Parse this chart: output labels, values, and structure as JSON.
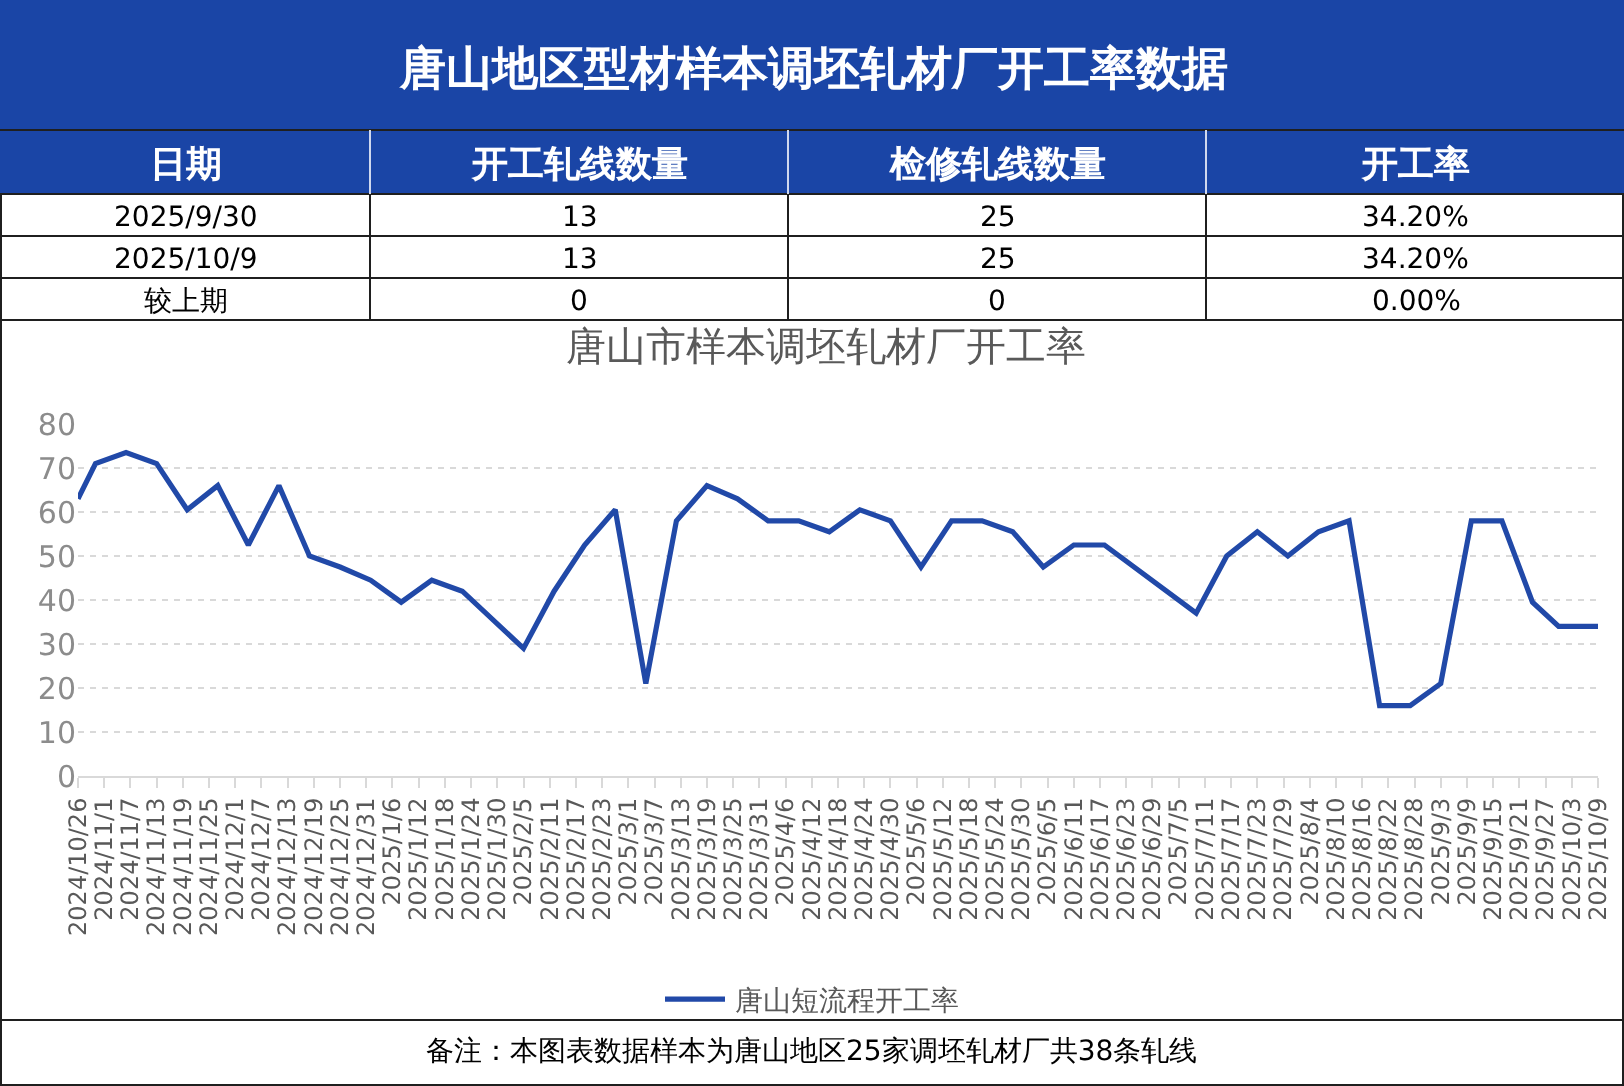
{
  "chart_data": [
    {
      "type": "other",
      "title": "唐山地区型材样本调坯轧材厂开工率数据",
      "ylabel": "日期",
      "color": "#1a45a6",
      "categories": [
        "开工轧线数量",
        "检修轧线数量",
        "开工率"
      ],
      "y_categories": [
        "2025/9/30",
        "2025/10/9",
        "较上期"
      ],
      "cell_labels": [
        [
          "13",
          "25",
          "34.20%"
        ],
        [
          "13",
          "25",
          "34.20%"
        ],
        [
          "0",
          "0",
          "0.00%"
        ]
      ]
    },
    {
      "type": "line",
      "title": "唐山市样本调坯轧材厂开工率",
      "x": [
        "2024-10-26",
        "2024-10-30",
        "2024-11-06",
        "2024-11-13",
        "2024-11-20",
        "2024-11-27",
        "2024-12-04",
        "2024-12-11",
        "2024-12-18",
        "2024-12-25",
        "2025-01-01",
        "2025-01-08",
        "2025-01-15",
        "2025-01-22",
        "2025-02-05",
        "2025-02-12",
        "2025-02-19",
        "2025-02-26",
        "2025-03-05",
        "2025-03-12",
        "2025-03-19",
        "2025-03-26",
        "2025-04-02",
        "2025-04-09",
        "2025-04-16",
        "2025-04-23",
        "2025-04-30",
        "2025-05-07",
        "2025-05-14",
        "2025-05-21",
        "2025-05-28",
        "2025-06-04",
        "2025-06-11",
        "2025-06-18",
        "2025-07-09",
        "2025-07-16",
        "2025-07-23",
        "2025-07-30",
        "2025-08-06",
        "2025-08-13",
        "2025-08-20",
        "2025-08-27",
        "2025-09-03",
        "2025-09-10",
        "2025-09-17",
        "2025-09-24",
        "2025-09-30",
        "2025-10-09"
      ],
      "series": [
        {
          "name": "唐山短流程开工率",
          "color": "#2149a8",
          "values": [
            63,
            71,
            73.5,
            71,
            60.5,
            66,
            52.5,
            66,
            50,
            47.5,
            44.5,
            39.5,
            44.5,
            42,
            29,
            42,
            52.5,
            60.5,
            21,
            58,
            66,
            63,
            58,
            58,
            55.5,
            60.5,
            58,
            47.5,
            58,
            58,
            55.5,
            47.5,
            52.5,
            52.5,
            37,
            50,
            55.5,
            50,
            55.5,
            58,
            16,
            16,
            21,
            58,
            58,
            39.5,
            34,
            34
          ]
        }
      ],
      "xlim": [
        "2024-10-26",
        "2025-10-09"
      ],
      "xticks": [
        {
          "value": "2024-10-26",
          "label": "2024/10/26"
        },
        {
          "value": "2024-11-01",
          "label": "2024/11/1"
        },
        {
          "value": "2024-11-07",
          "label": "2024/11/7"
        },
        {
          "value": "2024-11-13",
          "label": "2024/11/13"
        },
        {
          "value": "2024-11-19",
          "label": "2024/11/19"
        },
        {
          "value": "2024-11-25",
          "label": "2024/11/25"
        },
        {
          "value": "2024-12-01",
          "label": "2024/12/1"
        },
        {
          "value": "2024-12-07",
          "label": "2024/12/7"
        },
        {
          "value": "2024-12-13",
          "label": "2024/12/13"
        },
        {
          "value": "2024-12-19",
          "label": "2024/12/19"
        },
        {
          "value": "2024-12-25",
          "label": "2024/12/25"
        },
        {
          "value": "2024-12-31",
          "label": "2024/12/31"
        },
        {
          "value": "2025-01-06",
          "label": "2025/1/6"
        },
        {
          "value": "2025-01-12",
          "label": "2025/1/12"
        },
        {
          "value": "2025-01-18",
          "label": "2025/1/18"
        },
        {
          "value": "2025-01-24",
          "label": "2025/1/24"
        },
        {
          "value": "2025-01-30",
          "label": "2025/1/30"
        },
        {
          "value": "2025-02-05",
          "label": "2025/2/5"
        },
        {
          "value": "2025-02-11",
          "label": "2025/2/11"
        },
        {
          "value": "2025-02-17",
          "label": "2025/2/17"
        },
        {
          "value": "2025-02-23",
          "label": "2025/2/23"
        },
        {
          "value": "2025-03-01",
          "label": "2025/3/1"
        },
        {
          "value": "2025-03-07",
          "label": "2025/3/7"
        },
        {
          "value": "2025-03-13",
          "label": "2025/3/13"
        },
        {
          "value": "2025-03-19",
          "label": "2025/3/19"
        },
        {
          "value": "2025-03-25",
          "label": "2025/3/25"
        },
        {
          "value": "2025-03-31",
          "label": "2025/3/31"
        },
        {
          "value": "2025-04-06",
          "label": "2025/4/6"
        },
        {
          "value": "2025-04-12",
          "label": "2025/4/12"
        },
        {
          "value": "2025-04-18",
          "label": "2025/4/18"
        },
        {
          "value": "2025-04-24",
          "label": "2025/4/24"
        },
        {
          "value": "2025-04-30",
          "label": "2025/4/30"
        },
        {
          "value": "2025-05-06",
          "label": "2025/5/6"
        },
        {
          "value": "2025-05-12",
          "label": "2025/5/12"
        },
        {
          "value": "2025-05-18",
          "label": "2025/5/18"
        },
        {
          "value": "2025-05-24",
          "label": "2025/5/24"
        },
        {
          "value": "2025-05-30",
          "label": "2025/5/30"
        },
        {
          "value": "2025-06-05",
          "label": "2025/6/5"
        },
        {
          "value": "2025-06-11",
          "label": "2025/6/11"
        },
        {
          "value": "2025-06-17",
          "label": "2025/6/17"
        },
        {
          "value": "2025-06-23",
          "label": "2025/6/23"
        },
        {
          "value": "2025-06-29",
          "label": "2025/6/29"
        },
        {
          "value": "2025-07-05",
          "label": "2025/7/5"
        },
        {
          "value": "2025-07-11",
          "label": "2025/7/11"
        },
        {
          "value": "2025-07-17",
          "label": "2025/7/17"
        },
        {
          "value": "2025-07-23",
          "label": "2025/7/23"
        },
        {
          "value": "2025-07-29",
          "label": "2025/7/29"
        },
        {
          "value": "2025-08-04",
          "label": "2025/8/4"
        },
        {
          "value": "2025-08-10",
          "label": "2025/8/10"
        },
        {
          "value": "2025-08-16",
          "label": "2025/8/16"
        },
        {
          "value": "2025-08-22",
          "label": "2025/8/22"
        },
        {
          "value": "2025-08-28",
          "label": "2025/8/28"
        },
        {
          "value": "2025-09-03",
          "label": "2025/9/3"
        },
        {
          "value": "2025-09-09",
          "label": "2025/9/9"
        },
        {
          "value": "2025-09-15",
          "label": "2025/9/15"
        },
        {
          "value": "2025-09-21",
          "label": "2025/9/21"
        },
        {
          "value": "2025-09-27",
          "label": "2025/9/27"
        },
        {
          "value": "2025-10-03",
          "label": "2025/10/3"
        },
        {
          "value": "2025-10-09",
          "label": "2025/10/9"
        }
      ],
      "ylim": [
        0,
        80
      ],
      "yticks": [
        0,
        10,
        20,
        30,
        40,
        50,
        60,
        70,
        80
      ],
      "grid": "y",
      "legend": "bottom",
      "marker": "none",
      "line_style": "solid",
      "annotations": [
        "备注：本图表数据样本为唐山地区25家调坯轧材厂共38条轧线"
      ]
    }
  ]
}
